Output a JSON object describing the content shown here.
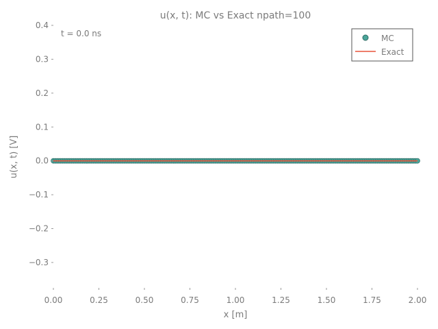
{
  "chart_data": {
    "type": "line",
    "title": "u(x, t): MC vs Exact  npath=100",
    "xlabel": "x [m]",
    "ylabel": "u(x, t) [V]",
    "annotation": "t = 0.0 ns",
    "xlim": [
      0.0,
      2.0
    ],
    "ylim": [
      -0.375,
      0.4
    ],
    "xticks": [
      {
        "value": 0.0,
        "label": "0.00"
      },
      {
        "value": 0.25,
        "label": "0.25"
      },
      {
        "value": 0.5,
        "label": "0.50"
      },
      {
        "value": 0.75,
        "label": "0.75"
      },
      {
        "value": 1.0,
        "label": "1.00"
      },
      {
        "value": 1.25,
        "label": "1.25"
      },
      {
        "value": 1.5,
        "label": "1.50"
      },
      {
        "value": 1.75,
        "label": "1.75"
      },
      {
        "value": 2.0,
        "label": "2.00"
      }
    ],
    "yticks": [
      {
        "value": -0.3,
        "label": "−0.3"
      },
      {
        "value": -0.2,
        "label": "−0.2"
      },
      {
        "value": -0.1,
        "label": "−0.1"
      },
      {
        "value": 0.0,
        "label": "0.0"
      },
      {
        "value": 0.1,
        "label": "0.1"
      },
      {
        "value": 0.2,
        "label": "0.2"
      },
      {
        "value": 0.3,
        "label": "0.3"
      },
      {
        "value": 0.4,
        "label": "0.4"
      }
    ],
    "grid": false,
    "legend_position": "top-right",
    "series": [
      {
        "name": "MC",
        "kind": "markers",
        "color": "#4aa59a",
        "x": [
          0.0,
          2.0
        ],
        "y": [
          0.0,
          0.0
        ]
      },
      {
        "name": "Exact",
        "kind": "line",
        "color": "#e8533a",
        "x": [
          0.0,
          2.0
        ],
        "y": [
          0.0,
          0.0
        ]
      }
    ]
  }
}
